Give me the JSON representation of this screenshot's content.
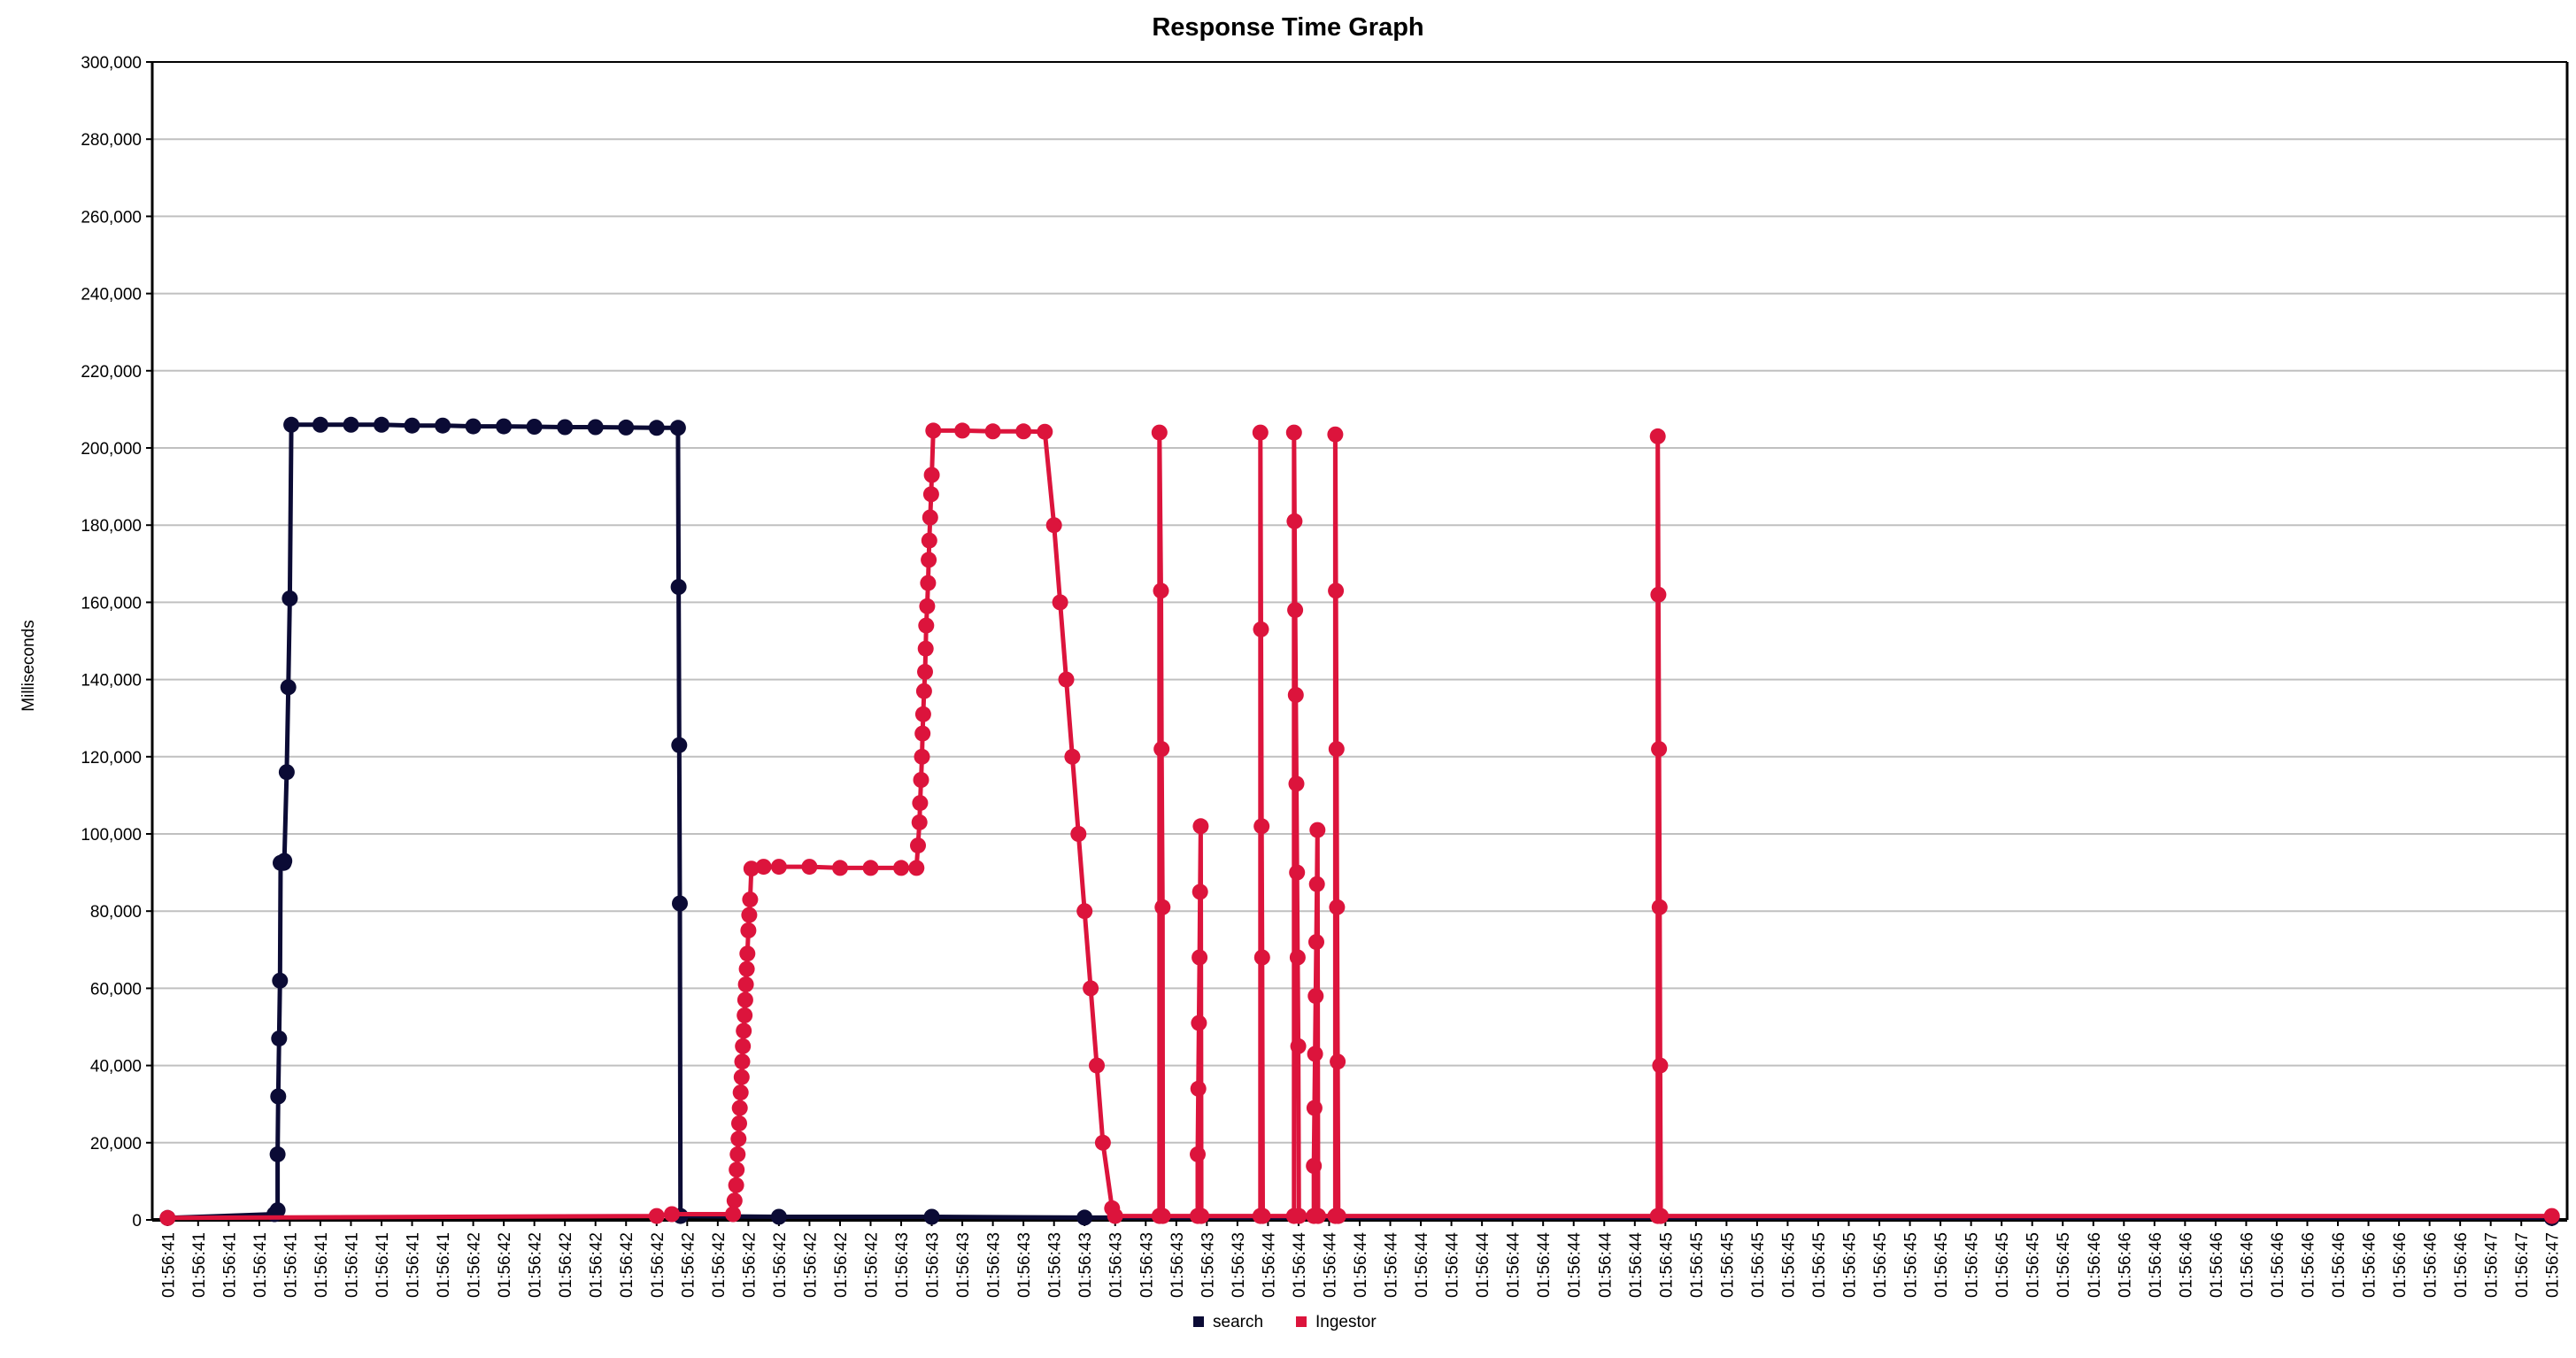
{
  "chart_data": {
    "type": "line",
    "title": "Response Time Graph",
    "xlabel": "",
    "ylabel": "Milliseconds",
    "ylim": [
      0,
      300000
    ],
    "yticks": [
      "0",
      "20,000",
      "40,000",
      "60,000",
      "80,000",
      "100,000",
      "120,000",
      "140,000",
      "160,000",
      "180,000",
      "200,000",
      "220,000",
      "240,000",
      "260,000",
      "280,000",
      "300,000"
    ],
    "categories": [
      "01:56:41",
      "01:56:41",
      "01:56:41",
      "01:56:41",
      "01:56:41",
      "01:56:41",
      "01:56:41",
      "01:56:41",
      "01:56:41",
      "01:56:41",
      "01:56:42",
      "01:56:42",
      "01:56:42",
      "01:56:42",
      "01:56:42",
      "01:56:42",
      "01:56:42",
      "01:56:42",
      "01:56:42",
      "01:56:42",
      "01:56:42",
      "01:56:42",
      "01:56:42",
      "01:56:42",
      "01:56:43",
      "01:56:43",
      "01:56:43",
      "01:56:43",
      "01:56:43",
      "01:56:43",
      "01:56:43",
      "01:56:43",
      "01:56:43",
      "01:56:43",
      "01:56:43",
      "01:56:43",
      "01:56:44",
      "01:56:44",
      "01:56:44",
      "01:56:44",
      "01:56:44",
      "01:56:44",
      "01:56:44",
      "01:56:44",
      "01:56:44",
      "01:56:44",
      "01:56:44",
      "01:56:44",
      "01:56:44",
      "01:56:45",
      "01:56:45",
      "01:56:45",
      "01:56:45",
      "01:56:45",
      "01:56:45",
      "01:56:45",
      "01:56:45",
      "01:56:45",
      "01:56:45",
      "01:56:45",
      "01:56:45",
      "01:56:45",
      "01:56:45",
      "01:56:46",
      "01:56:46",
      "01:56:46",
      "01:56:46",
      "01:56:46",
      "01:56:46",
      "01:56:46",
      "01:56:46",
      "01:56:46",
      "01:56:46",
      "01:56:46",
      "01:56:46",
      "01:56:46",
      "01:56:47",
      "01:56:47",
      "01:56:47"
    ],
    "legend_position": "bottom",
    "grid": true,
    "series": [
      {
        "name": "search",
        "color": "#0b0b35",
        "points": [
          [
            0,
            500
          ],
          [
            3.5,
            1500
          ],
          [
            3.6,
            2500
          ],
          [
            3.6,
            17000
          ],
          [
            3.62,
            32000
          ],
          [
            3.65,
            47000
          ],
          [
            3.68,
            62000
          ],
          [
            3.7,
            92500
          ],
          [
            3.8,
            92500
          ],
          [
            3.82,
            93000
          ],
          [
            3.9,
            116000
          ],
          [
            3.95,
            138000
          ],
          [
            4.0,
            161000
          ],
          [
            4.05,
            206000
          ],
          [
            5.0,
            206000
          ],
          [
            6.0,
            206000
          ],
          [
            7.0,
            206000
          ],
          [
            8.0,
            205800
          ],
          [
            9.0,
            205800
          ],
          [
            10.0,
            205600
          ],
          [
            11.0,
            205600
          ],
          [
            12.0,
            205500
          ],
          [
            13.0,
            205400
          ],
          [
            14.0,
            205400
          ],
          [
            15.0,
            205300
          ],
          [
            16.0,
            205200
          ],
          [
            16.7,
            205200
          ],
          [
            16.72,
            164000
          ],
          [
            16.74,
            123000
          ],
          [
            16.76,
            82000
          ],
          [
            16.78,
            1000
          ],
          [
            20.0,
            800
          ],
          [
            25.0,
            800
          ],
          [
            30.0,
            600
          ],
          [
            78.0,
            500
          ]
        ]
      },
      {
        "name": "Ingestor",
        "color": "#dc143c",
        "points": [
          [
            0,
            500
          ],
          [
            16.0,
            1000
          ],
          [
            16.5,
            1500
          ],
          [
            18.5,
            1500
          ],
          [
            18.55,
            5000
          ],
          [
            18.6,
            9000
          ],
          [
            18.62,
            13000
          ],
          [
            18.65,
            17000
          ],
          [
            18.68,
            21000
          ],
          [
            18.7,
            25000
          ],
          [
            18.72,
            29000
          ],
          [
            18.75,
            33000
          ],
          [
            18.78,
            37000
          ],
          [
            18.8,
            41000
          ],
          [
            18.82,
            45000
          ],
          [
            18.85,
            49000
          ],
          [
            18.88,
            53000
          ],
          [
            18.9,
            57000
          ],
          [
            18.92,
            61000
          ],
          [
            18.95,
            65000
          ],
          [
            18.97,
            69000
          ],
          [
            19.0,
            75000
          ],
          [
            19.03,
            79000
          ],
          [
            19.06,
            83000
          ],
          [
            19.1,
            91000
          ],
          [
            19.5,
            91500
          ],
          [
            20.0,
            91500
          ],
          [
            21.0,
            91500
          ],
          [
            22.0,
            91200
          ],
          [
            23.0,
            91200
          ],
          [
            24.0,
            91200
          ],
          [
            24.5,
            91200
          ],
          [
            24.55,
            97000
          ],
          [
            24.6,
            103000
          ],
          [
            24.62,
            108000
          ],
          [
            24.65,
            114000
          ],
          [
            24.68,
            120000
          ],
          [
            24.7,
            126000
          ],
          [
            24.72,
            131000
          ],
          [
            24.75,
            137000
          ],
          [
            24.78,
            142000
          ],
          [
            24.8,
            148000
          ],
          [
            24.82,
            154000
          ],
          [
            24.85,
            159000
          ],
          [
            24.88,
            165000
          ],
          [
            24.9,
            171000
          ],
          [
            24.92,
            176000
          ],
          [
            24.95,
            182000
          ],
          [
            24.98,
            188000
          ],
          [
            25.0,
            193000
          ],
          [
            25.05,
            204500
          ],
          [
            26.0,
            204500
          ],
          [
            27.0,
            204300
          ],
          [
            28.0,
            204300
          ],
          [
            28.7,
            204200
          ],
          [
            29.0,
            180000
          ],
          [
            29.2,
            160000
          ],
          [
            29.4,
            140000
          ],
          [
            29.6,
            120000
          ],
          [
            29.8,
            100000
          ],
          [
            30.0,
            80000
          ],
          [
            30.2,
            60000
          ],
          [
            30.4,
            40000
          ],
          [
            30.6,
            20000
          ],
          [
            30.9,
            3000
          ],
          [
            31.0,
            1000
          ],
          [
            32.45,
            1000
          ],
          [
            32.45,
            204000
          ],
          [
            32.5,
            163000
          ],
          [
            32.52,
            122000
          ],
          [
            32.55,
            81000
          ],
          [
            32.56,
            1000
          ],
          [
            33.7,
            1000
          ],
          [
            33.7,
            17000
          ],
          [
            33.72,
            34000
          ],
          [
            33.74,
            51000
          ],
          [
            33.76,
            68000
          ],
          [
            33.78,
            85000
          ],
          [
            33.8,
            102000
          ],
          [
            33.82,
            1000
          ],
          [
            35.75,
            1000
          ],
          [
            35.75,
            204000
          ],
          [
            35.77,
            153000
          ],
          [
            35.79,
            102000
          ],
          [
            35.81,
            68000
          ],
          [
            35.83,
            1000
          ],
          [
            36.85,
            1000
          ],
          [
            36.85,
            204000
          ],
          [
            36.87,
            181000
          ],
          [
            36.89,
            158000
          ],
          [
            36.91,
            136000
          ],
          [
            36.93,
            113000
          ],
          [
            36.95,
            90000
          ],
          [
            36.97,
            68000
          ],
          [
            36.99,
            45000
          ],
          [
            37.01,
            1000
          ],
          [
            37.5,
            1000
          ],
          [
            37.5,
            14000
          ],
          [
            37.52,
            29000
          ],
          [
            37.54,
            43000
          ],
          [
            37.56,
            58000
          ],
          [
            37.58,
            72000
          ],
          [
            37.6,
            87000
          ],
          [
            37.62,
            101000
          ],
          [
            37.64,
            1000
          ],
          [
            38.2,
            1000
          ],
          [
            38.2,
            203500
          ],
          [
            38.22,
            163000
          ],
          [
            38.24,
            122000
          ],
          [
            38.26,
            81000
          ],
          [
            38.28,
            41000
          ],
          [
            38.3,
            1000
          ],
          [
            48.75,
            1000
          ],
          [
            48.75,
            203000
          ],
          [
            48.77,
            162000
          ],
          [
            48.79,
            122000
          ],
          [
            48.81,
            81000
          ],
          [
            48.83,
            40000
          ],
          [
            48.85,
            1000
          ],
          [
            78.0,
            1000
          ]
        ]
      }
    ]
  }
}
